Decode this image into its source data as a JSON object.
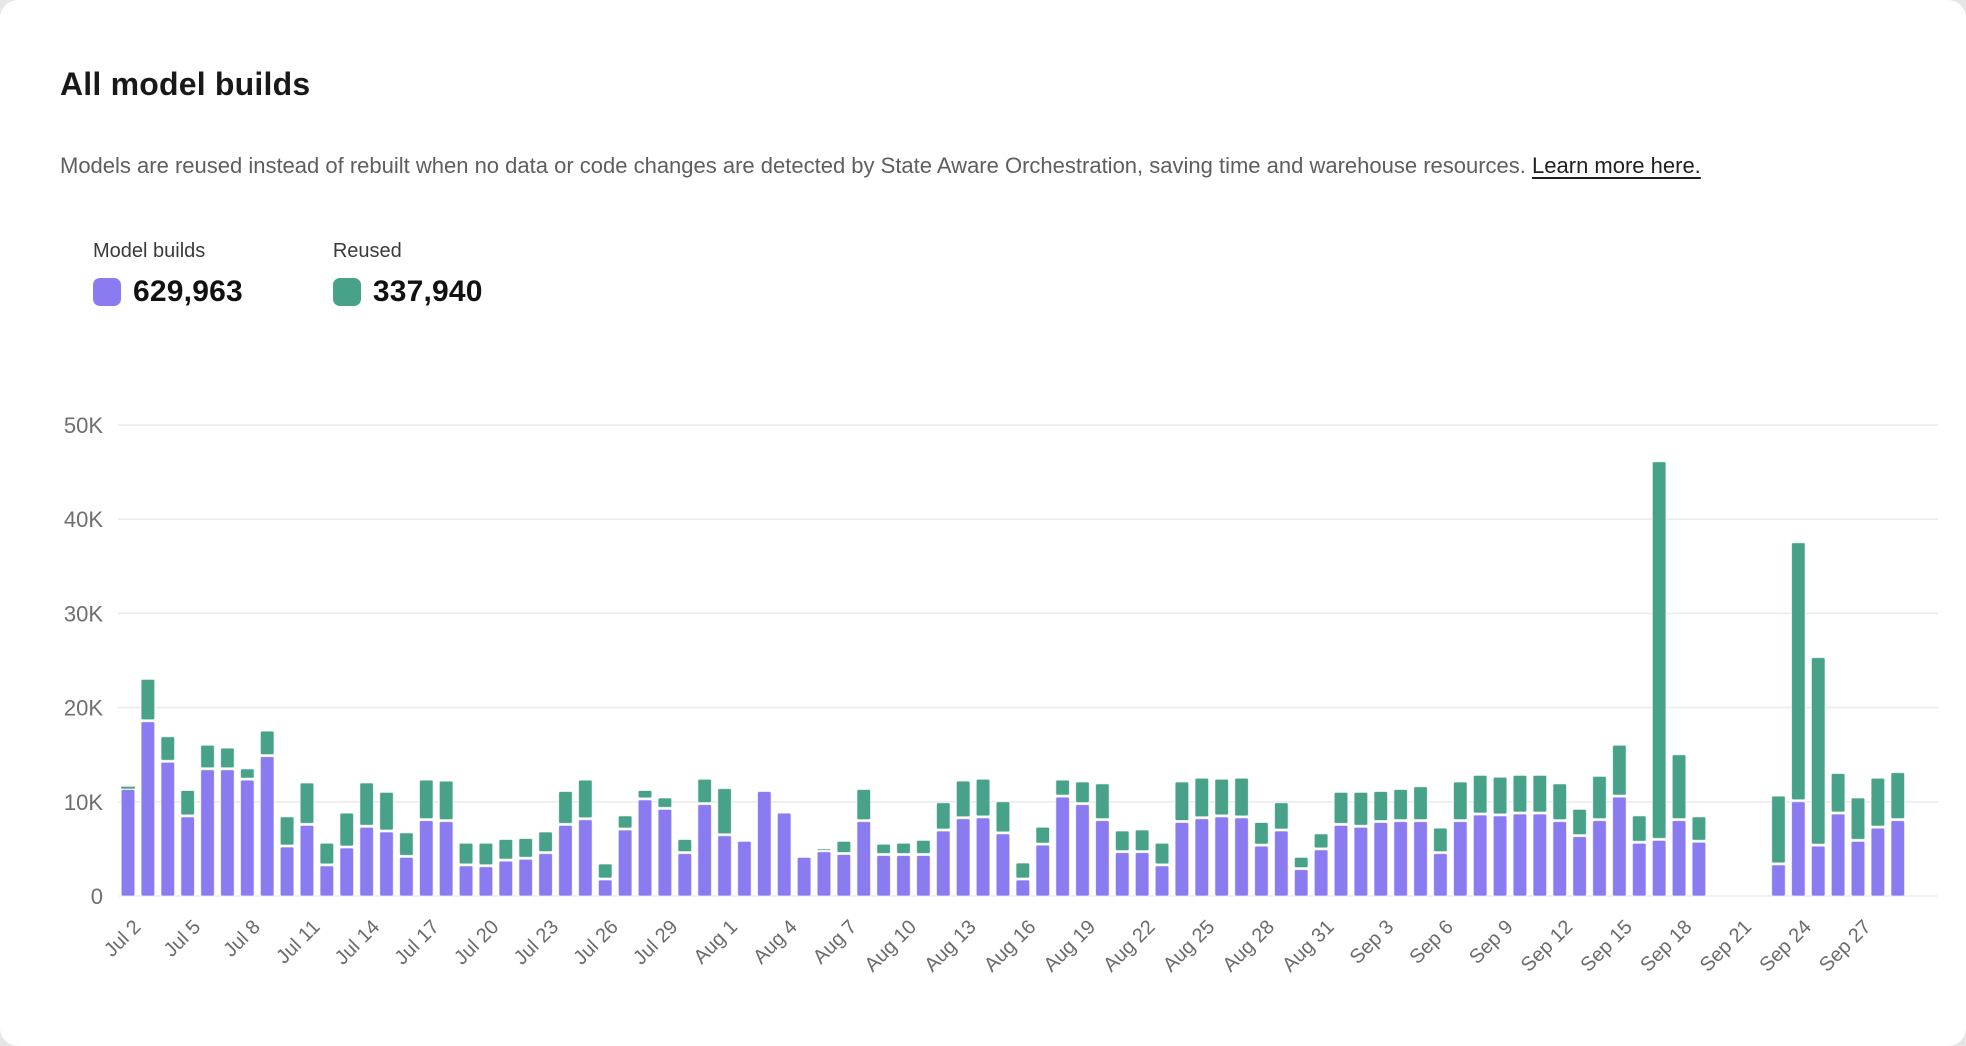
{
  "page": {
    "title": "All model builds",
    "subtitle_body": "Models are reused instead of rebuilt when no data or code changes are detected by State Aware Orchestration, saving time and warehouse resources.",
    "subtitle_link": "Learn more here."
  },
  "legend": {
    "items": [
      {
        "label": "Model builds",
        "value": "629,963",
        "color": "#8b7bf1"
      },
      {
        "label": "Reused",
        "value": "337,940",
        "color": "#48a28a"
      }
    ]
  },
  "chart_data": {
    "type": "bar",
    "stacked": true,
    "title": "All model builds",
    "xlabel": "",
    "ylabel": "",
    "ylim": [
      0,
      50000
    ],
    "ytick_labels": [
      "0",
      "10K",
      "20K",
      "30K",
      "40K",
      "50K"
    ],
    "xtick_every": 3,
    "grid": true,
    "legend_position": "top-left",
    "categories": [
      "Jul 2",
      "Jul 3",
      "Jul 4",
      "Jul 5",
      "Jul 6",
      "Jul 7",
      "Jul 8",
      "Jul 9",
      "Jul 10",
      "Jul 11",
      "Jul 12",
      "Jul 13",
      "Jul 14",
      "Jul 15",
      "Jul 16",
      "Jul 17",
      "Jul 18",
      "Jul 19",
      "Jul 20",
      "Jul 21",
      "Jul 22",
      "Jul 23",
      "Jul 24",
      "Jul 25",
      "Jul 26",
      "Jul 27",
      "Jul 28",
      "Jul 29",
      "Jul 30",
      "Jul 31",
      "Aug 1",
      "Aug 2",
      "Aug 3",
      "Aug 4",
      "Aug 5",
      "Aug 6",
      "Aug 7",
      "Aug 8",
      "Aug 9",
      "Aug 10",
      "Aug 11",
      "Aug 12",
      "Aug 13",
      "Aug 14",
      "Aug 15",
      "Aug 16",
      "Aug 17",
      "Aug 18",
      "Aug 19",
      "Aug 20",
      "Aug 21",
      "Aug 22",
      "Aug 23",
      "Aug 24",
      "Aug 25",
      "Aug 26",
      "Aug 27",
      "Aug 28",
      "Aug 29",
      "Aug 30",
      "Aug 31",
      "Sep 1",
      "Sep 2",
      "Sep 3",
      "Sep 4",
      "Sep 5",
      "Sep 6",
      "Sep 7",
      "Sep 8",
      "Sep 9",
      "Sep 10",
      "Sep 11",
      "Sep 12",
      "Sep 13",
      "Sep 14",
      "Sep 15",
      "Sep 16",
      "Sep 17",
      "Sep 18",
      "Sep 19",
      "Sep 20",
      "Sep 21",
      "Sep 22",
      "Sep 23",
      "Sep 24",
      "Sep 25",
      "Sep 26",
      "Sep 27",
      "Sep 28",
      "Sep 29"
    ],
    "series": [
      {
        "name": "Model builds",
        "color": "#8b7bf1",
        "total_label": "629,963",
        "values": [
          11300,
          18500,
          14200,
          8400,
          13400,
          13400,
          12300,
          14800,
          5200,
          7500,
          3200,
          5100,
          7300,
          6800,
          4100,
          8000,
          7900,
          3200,
          3100,
          3700,
          3900,
          4500,
          7500,
          8100,
          1700,
          7000,
          10200,
          9200,
          4500,
          9700,
          6400,
          5800,
          11100,
          8800,
          4100,
          4700,
          4400,
          7900,
          4300,
          4300,
          4300,
          6900,
          8200,
          8300,
          6600,
          1700,
          5400,
          10500,
          9700,
          8000,
          4600,
          4600,
          3200,
          7800,
          8200,
          8400,
          8300,
          5300,
          6900,
          2800,
          4900,
          7500,
          7300,
          7800,
          7900,
          7900,
          4500,
          7900,
          8600,
          8500,
          8700,
          8700,
          7900,
          6300,
          8000,
          10500,
          5600,
          5900,
          8000,
          5700,
          null,
          null,
          null,
          3300,
          10000,
          5300,
          8700,
          5800,
          7200,
          8000
        ]
      },
      {
        "name": "Reused",
        "color": "#48a28a",
        "total_label": "337,940",
        "values": [
          200,
          4500,
          2700,
          2800,
          2600,
          2300,
          1200,
          2700,
          3200,
          4500,
          2400,
          3700,
          4700,
          4200,
          2600,
          4300,
          4300,
          2400,
          2500,
          2300,
          2200,
          2300,
          3600,
          4200,
          1700,
          1500,
          1000,
          1200,
          1500,
          2700,
          5000,
          0,
          0,
          0,
          0,
          300,
          1400,
          3400,
          1200,
          1300,
          1600,
          3000,
          4000,
          4100,
          3400,
          1800,
          1900,
          1800,
          2400,
          3900,
          2300,
          2400,
          2400,
          4300,
          4300,
          4000,
          4200,
          2500,
          3000,
          1300,
          1700,
          3500,
          3700,
          3300,
          3400,
          3700,
          2700,
          4200,
          4200,
          4100,
          4100,
          4100,
          4000,
          2900,
          4700,
          5500,
          2900,
          40200,
          7000,
          2700,
          null,
          null,
          null,
          7300,
          27500,
          20000,
          4300,
          4600,
          5300,
          5100
        ]
      }
    ]
  },
  "style": {
    "grid_color": "#ececec",
    "bar_outline": "#ffffff"
  }
}
